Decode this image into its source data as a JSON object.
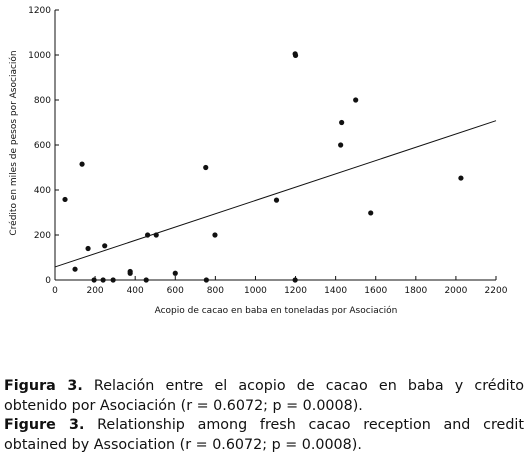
{
  "chart_data": {
    "type": "scatter",
    "title": "",
    "xlabel": "Acopio de cacao en baba en toneladas por Asociación",
    "ylabel": "Crédito en miles de pesos por Asociación",
    "xlim": [
      0,
      2200
    ],
    "ylim": [
      0,
      1200
    ],
    "xticks": [
      0,
      200,
      400,
      600,
      800,
      1000,
      1200,
      1400,
      1600,
      1800,
      2000,
      2200
    ],
    "yticks": [
      0,
      200,
      400,
      600,
      800,
      1000,
      1200
    ],
    "grid": false,
    "legend": false,
    "points": [
      {
        "x": 50,
        "y": 358
      },
      {
        "x": 100,
        "y": 48
      },
      {
        "x": 135,
        "y": 515
      },
      {
        "x": 165,
        "y": 140
      },
      {
        "x": 195,
        "y": 0
      },
      {
        "x": 240,
        "y": 0
      },
      {
        "x": 248,
        "y": 152
      },
      {
        "x": 290,
        "y": 0
      },
      {
        "x": 375,
        "y": 38
      },
      {
        "x": 375,
        "y": 30
      },
      {
        "x": 455,
        "y": 0
      },
      {
        "x": 462,
        "y": 200
      },
      {
        "x": 505,
        "y": 200
      },
      {
        "x": 600,
        "y": 30
      },
      {
        "x": 752,
        "y": 500
      },
      {
        "x": 755,
        "y": 0
      },
      {
        "x": 798,
        "y": 200
      },
      {
        "x": 1105,
        "y": 355
      },
      {
        "x": 1198,
        "y": 1005
      },
      {
        "x": 1200,
        "y": 998
      },
      {
        "x": 1198,
        "y": 0
      },
      {
        "x": 1425,
        "y": 600
      },
      {
        "x": 1430,
        "y": 700
      },
      {
        "x": 1500,
        "y": 800
      },
      {
        "x": 1575,
        "y": 298
      },
      {
        "x": 2025,
        "y": 453
      }
    ],
    "trendline": {
      "x": [
        0,
        2200
      ],
      "y": [
        58,
        708
      ]
    }
  },
  "caption": {
    "es_label": "Figura 3.",
    "es_text_line1": "Relación entre el acopio de cacao en baba y crédito",
    "es_text_line2": "obtenido por Asociación (r = 0.6072; p = 0.0008).",
    "en_label": "Figure 3.",
    "en_text_line1": "Relationship among fresh cacao reception and credit",
    "en_text_line2": "obtained by Association (r = 0.6072; p = 0.0008)."
  }
}
